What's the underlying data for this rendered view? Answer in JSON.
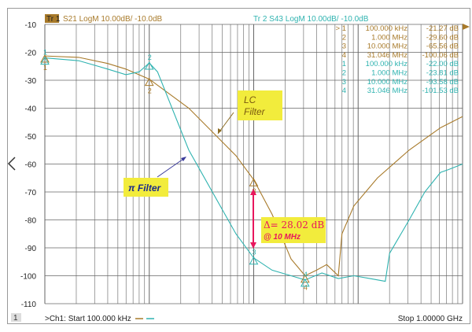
{
  "header": {
    "tr1_badge": "Tr 1",
    "tr1_label": "S21 LogM 10.00dB/ -10.0dB",
    "tr2_label": "Tr 2  S43 LogM 10.00dB/ -10.0dB"
  },
  "footer": {
    "channel_badge": "1",
    "start_label": ">Ch1:  Start  100.000 kHz",
    "stop_label": "Stop  1.00000 GHz"
  },
  "colors": {
    "tr1": "#a87a2a",
    "tr2": "#2fb3b0",
    "annotation_bg": "#f2ec3c",
    "delta": "#e8175d"
  },
  "marker_table": [
    {
      "trace": 1,
      "num": "> 1",
      "freq": "100.000  kHz",
      "value": "-21.27 dB"
    },
    {
      "trace": 1,
      "num": "2",
      "freq": "1.000  MHz",
      "value": "-29.60 dB"
    },
    {
      "trace": 1,
      "num": "3",
      "freq": "10.000  MHz",
      "value": "-65.56 dB"
    },
    {
      "trace": 1,
      "num": "4",
      "freq": "31.046  MHz",
      "value": "-100.06 dB"
    },
    {
      "trace": 2,
      "num": "1",
      "freq": "100.000  kHz",
      "value": "-22.00 dB"
    },
    {
      "trace": 2,
      "num": "2",
      "freq": "1.000  MHz",
      "value": "-23.81 dB"
    },
    {
      "trace": 2,
      "num": "3",
      "freq": "10.000  MHz",
      "value": "-93.58 dB"
    },
    {
      "trace": 2,
      "num": "4",
      "freq": "31.046  MHz",
      "value": "-101.53 dB"
    }
  ],
  "annotations": {
    "lc_line1": "LC",
    "lc_line2": "Filter",
    "pi": "π Filter",
    "delta": "Δ= 28.02 dB",
    "delta_at": "@ 10 MHz"
  },
  "chart_data": {
    "type": "line",
    "xscale": "log",
    "xlim": [
      100000,
      1000000000
    ],
    "ylim": [
      -110,
      -10
    ],
    "yticks": [
      -10,
      -20,
      -30,
      -40,
      -50,
      -60,
      -70,
      -80,
      -90,
      -100,
      -110
    ],
    "grid": true,
    "series": [
      {
        "name": "S21 (LC Filter)",
        "color": "#a87a2a",
        "x": [
          100000,
          211000,
          400000,
          597000,
          1000000,
          2390000,
          6760000,
          10000000,
          15000000,
          22800000,
          31046000,
          40000000,
          50000000,
          64600000,
          70000000,
          91000000,
          153000000,
          308000000,
          435000000,
          615000000,
          1000000000
        ],
        "y": [
          -21.3,
          -21.8,
          -24,
          -26,
          -29.6,
          -40,
          -57,
          -65.6,
          -78,
          -94,
          -100,
          -98,
          -96,
          -100,
          -85,
          -75,
          -65,
          -55,
          -51,
          -47,
          -43
        ]
      },
      {
        "name": "S43 (π Filter)",
        "color": "#2fb3b0",
        "x": [
          100000,
          211000,
          400000,
          597000,
          800000,
          1000000,
          1200000,
          2390000,
          6760000,
          10000000,
          15000000,
          22800000,
          31046000,
          45000000,
          64600000,
          91000000,
          130000000,
          182000000,
          200000000,
          308000000,
          435000000,
          615000000,
          731000000,
          1000000000
        ],
        "y": [
          -22,
          -23,
          -26,
          -28,
          -27,
          -23.8,
          -27,
          -55,
          -85,
          -93.6,
          -98,
          -100,
          -101.5,
          -99,
          -101,
          -100,
          -101,
          -102,
          -92,
          -80,
          -70,
          -63,
          -62,
          -60
        ]
      }
    ],
    "markers": [
      {
        "trace": 1,
        "freqs": [
          100000,
          1000000,
          10000000,
          31046000
        ],
        "values": [
          -21.27,
          -29.6,
          -65.56,
          -100.06
        ]
      },
      {
        "trace": 2,
        "freqs": [
          100000,
          1000000,
          10000000,
          31046000
        ],
        "values": [
          -22.0,
          -23.81,
          -93.58,
          -101.53
        ]
      }
    ]
  }
}
